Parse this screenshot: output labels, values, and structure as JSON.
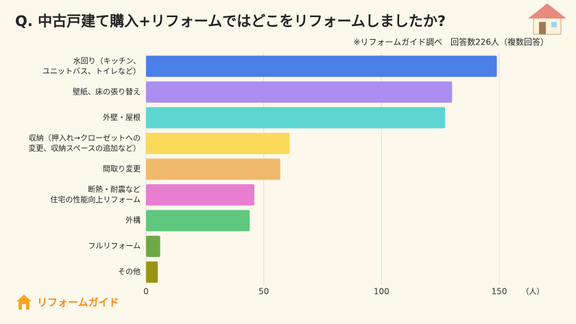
{
  "chart_data": {
    "type": "hbar",
    "title": "Q. 中古戸建て購入+リフォームではどこをリフォームしましたか?",
    "subtitle": "※リフォームガイド調べ　回答数226人（複数回答）",
    "unit_label": "（人）",
    "logo_text": "リフォームガイド",
    "categories": [
      [
        "水回り（キッチン、",
        "ユニットバス、トイレなど）"
      ],
      [
        "壁紙、床の張り替え"
      ],
      [
        "外壁・屋根"
      ],
      [
        "収納（押入れ→クローゼットへの",
        "変更、収納スペースの追加など）"
      ],
      [
        "間取り変更"
      ],
      [
        "断熱・耐震など",
        "住宅の性能向上リフォーム"
      ],
      [
        "外構"
      ],
      [
        "フルリフォーム"
      ],
      [
        "その他"
      ]
    ],
    "values": [
      149,
      130,
      127,
      61,
      57,
      46,
      44,
      6,
      5
    ],
    "colors": [
      "#4a7fe8",
      "#ab8ef0",
      "#5dd5d0",
      "#fbd95a",
      "#f0b96c",
      "#e87ecf",
      "#5fc87e",
      "#6daa45",
      "#9a9413"
    ],
    "xlim": [
      0,
      150
    ],
    "xticks": [
      0,
      50,
      100,
      150
    ],
    "grid": true
  }
}
